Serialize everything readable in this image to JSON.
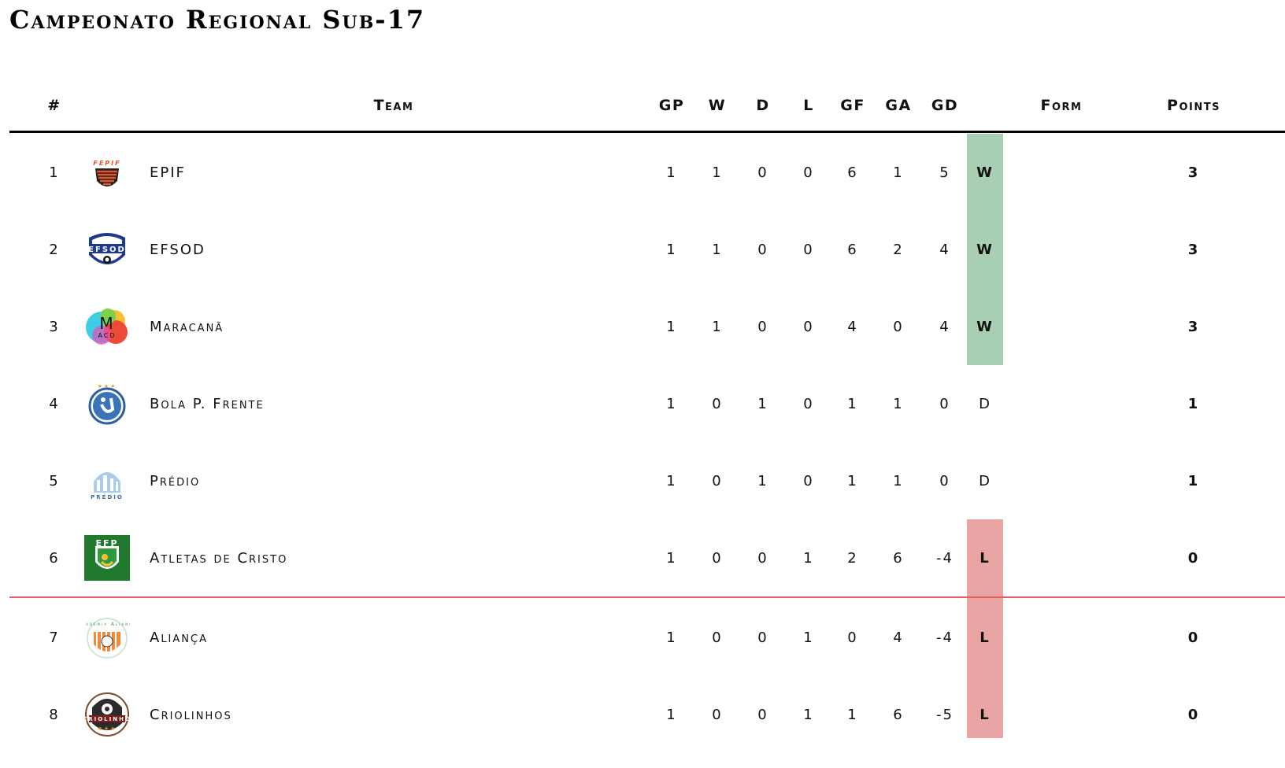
{
  "title": "Campeonato Regional Sub-17",
  "headers": {
    "rank": "#",
    "team": "Team",
    "gp": "GP",
    "w": "W",
    "d": "D",
    "l": "L",
    "gf": "GF",
    "ga": "GA",
    "gd": "GD",
    "form": "Form",
    "points": "Points"
  },
  "colors": {
    "win_band": "#a8cfb3",
    "loss_band": "#e8a5a3",
    "relegation_line": "#e0605c",
    "header_line": "#000000"
  },
  "rows": [
    {
      "rank": "1",
      "team": "EPIF",
      "logo_text": "fepif",
      "logo": "epif-logo",
      "gp": "1",
      "w": "1",
      "d": "0",
      "l": "0",
      "gf": "6",
      "ga": "1",
      "gd": "5",
      "form": "W",
      "points": "3"
    },
    {
      "rank": "2",
      "team": "EFSOD",
      "logo_text": "EFSOD",
      "logo": "efsod-logo",
      "gp": "1",
      "w": "1",
      "d": "0",
      "l": "0",
      "gf": "6",
      "ga": "2",
      "gd": "4",
      "form": "W",
      "points": "3"
    },
    {
      "rank": "3",
      "team": "Maracanã",
      "logo_text": "M ACD",
      "logo": "maracana-logo",
      "gp": "1",
      "w": "1",
      "d": "0",
      "l": "0",
      "gf": "4",
      "ga": "0",
      "gd": "4",
      "form": "W",
      "points": "3"
    },
    {
      "rank": "4",
      "team": "Bola P. Frente",
      "logo_text": "",
      "logo": "bola-p-frente-logo",
      "gp": "1",
      "w": "0",
      "d": "1",
      "l": "0",
      "gf": "1",
      "ga": "1",
      "gd": "0",
      "form": "D",
      "points": "1"
    },
    {
      "rank": "5",
      "team": "Prédio",
      "logo_text": "PRÉDIO",
      "logo": "predio-logo",
      "gp": "1",
      "w": "0",
      "d": "1",
      "l": "0",
      "gf": "1",
      "ga": "1",
      "gd": "0",
      "form": "D",
      "points": "1"
    },
    {
      "rank": "6",
      "team": "Atletas de Cristo",
      "logo_text": "EFP",
      "logo": "atletas-de-cristo-logo",
      "gp": "1",
      "w": "0",
      "d": "0",
      "l": "1",
      "gf": "2",
      "ga": "6",
      "gd": "-4",
      "form": "L",
      "points": "0"
    },
    {
      "rank": "7",
      "team": "Aliança",
      "logo_text": "Academia Aliança",
      "logo": "alianca-logo",
      "gp": "1",
      "w": "0",
      "d": "0",
      "l": "1",
      "gf": "0",
      "ga": "4",
      "gd": "-4",
      "form": "L",
      "points": "0"
    },
    {
      "rank": "8",
      "team": "Criolinhos",
      "logo_text": "CRIOLINHO",
      "logo": "criolinhos-logo",
      "gp": "1",
      "w": "0",
      "d": "0",
      "l": "1",
      "gf": "1",
      "ga": "6",
      "gd": "-5",
      "form": "L",
      "points": "0"
    }
  ]
}
